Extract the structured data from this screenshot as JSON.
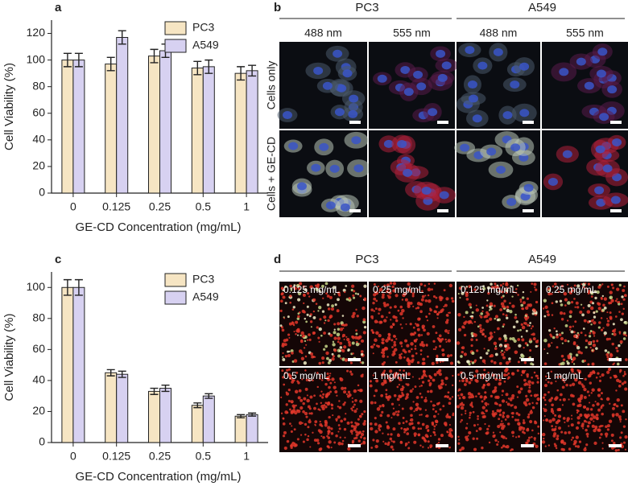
{
  "chart_data": [
    {
      "type": "bar",
      "label": "a",
      "x_label": "GE-CD Concentration (mg/mL)",
      "y_label": "Cell Viability (%)",
      "categories": [
        "0",
        "0.125",
        "0.25",
        "0.5",
        "1"
      ],
      "series": [
        {
          "name": "PC3",
          "color": "#f6e5c3",
          "values": [
            100,
            97,
            103,
            94,
            90
          ],
          "errors": [
            5,
            5,
            5,
            5,
            5
          ]
        },
        {
          "name": "A549",
          "color": "#d7d1f1",
          "values": [
            100,
            117,
            107,
            95,
            92
          ],
          "errors": [
            5,
            5,
            5,
            5,
            4
          ]
        }
      ],
      "ylim": [
        0,
        130
      ],
      "yticks": [
        0,
        20,
        40,
        60,
        80,
        100,
        120
      ],
      "legend": "upper right"
    },
    {
      "type": "bar",
      "label": "c",
      "x_label": "GE-CD Concentration (mg/mL)",
      "y_label": "Cell Viability (%)",
      "categories": [
        "0",
        "0.125",
        "0.25",
        "0.5",
        "1"
      ],
      "series": [
        {
          "name": "PC3",
          "color": "#f6e5c3",
          "values": [
            100,
            45,
            33,
            24,
            17
          ],
          "errors": [
            5,
            2,
            2,
            1.5,
            1
          ]
        },
        {
          "name": "A549",
          "color": "#d7d1f1",
          "values": [
            100,
            44,
            35,
            30,
            18
          ],
          "errors": [
            5,
            2,
            2,
            1.5,
            1
          ]
        }
      ],
      "ylim": [
        0,
        110
      ],
      "yticks": [
        0,
        20,
        40,
        60,
        80,
        100
      ],
      "legend": "upper right"
    }
  ],
  "panel_b": {
    "label": "b",
    "columns": [
      "PC3",
      "A549"
    ],
    "subcolumns": [
      "488 nm",
      "555 nm",
      "488 nm",
      "555 nm"
    ],
    "rows": [
      "Cells only",
      "Cells + GE-CD"
    ]
  },
  "panel_d": {
    "label": "d",
    "columns": [
      "PC3",
      "A549"
    ],
    "images": [
      [
        "0.125 mg/mL",
        "0.25 mg/mL",
        "0.125 mg/mL",
        "0.25 mg/mL"
      ],
      [
        "0.5 mg/mL",
        "1 mg/mL",
        "0.5 mg/mL",
        "1 mg/mL"
      ]
    ]
  }
}
